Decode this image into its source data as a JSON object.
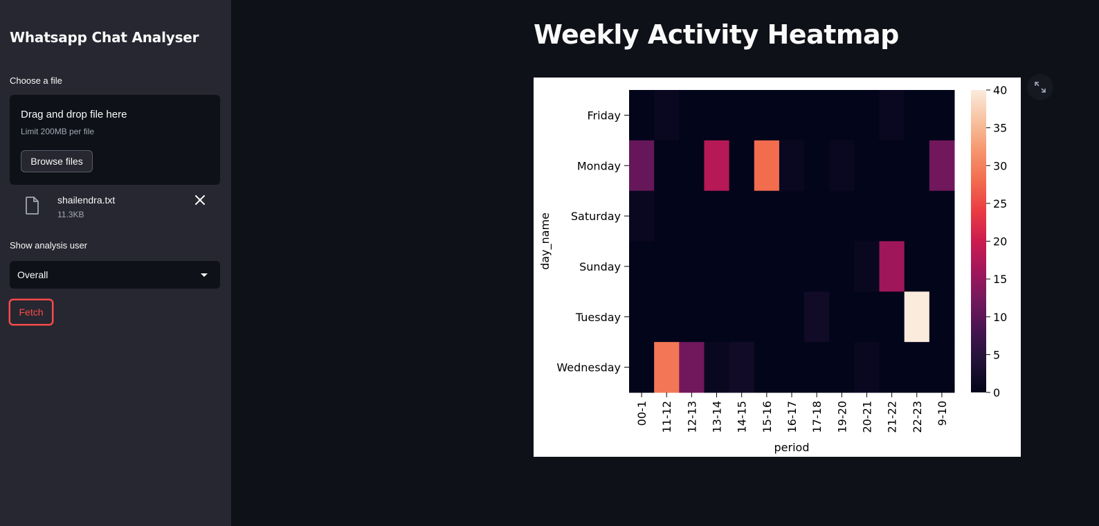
{
  "sidebar": {
    "title": "Whatsapp Chat Analyser",
    "file_label": "Choose a file",
    "dropzone": {
      "title": "Drag and drop file here",
      "limit": "Limit 200MB per file",
      "browse_label": "Browse files"
    },
    "file": {
      "name": "shailendra.txt",
      "size": "11.3KB"
    },
    "user_label": "Show analysis user",
    "user_select": {
      "value": "Overall"
    },
    "fetch_label": "Fetch"
  },
  "main": {
    "title": "Weekly Activity Heatmap"
  },
  "colors": {
    "accent": "#ff4b4b",
    "background": "#0e1117",
    "sidebar": "#262730"
  },
  "icons": {
    "file": "file-icon",
    "close": "close-icon",
    "caret": "chevron-down-icon",
    "expand": "fullscreen-icon"
  },
  "chart_data": {
    "type": "heatmap",
    "xlabel": "period",
    "ylabel": "day_name",
    "x": [
      "00-1",
      "11-12",
      "12-13",
      "13-14",
      "14-15",
      "15-16",
      "16-17",
      "17-18",
      "19-20",
      "20-21",
      "21-22",
      "22-23",
      "9-10"
    ],
    "y": [
      "Friday",
      "Monday",
      "Saturday",
      "Sunday",
      "Tuesday",
      "Wednesday"
    ],
    "values": [
      [
        0,
        1,
        0,
        0,
        0,
        0,
        0,
        0,
        0,
        0,
        1,
        0,
        0
      ],
      [
        11,
        0,
        0,
        18,
        0,
        28,
        1,
        0,
        1,
        0,
        0,
        0,
        12
      ],
      [
        1,
        0,
        0,
        0,
        0,
        0,
        0,
        0,
        0,
        0,
        0,
        0,
        0
      ],
      [
        0,
        0,
        0,
        0,
        0,
        0,
        0,
        0,
        0,
        1,
        16,
        0,
        0
      ],
      [
        0,
        0,
        0,
        0,
        0,
        0,
        0,
        2,
        0,
        0,
        0,
        40,
        0
      ],
      [
        0,
        29,
        12,
        1,
        2,
        0,
        0,
        0,
        0,
        1,
        0,
        0,
        0
      ]
    ],
    "colorbar": {
      "min": 0,
      "max": 40,
      "ticks": [
        0,
        5,
        10,
        15,
        20,
        25,
        30,
        35,
        40
      ]
    },
    "colormap": "rocket"
  }
}
